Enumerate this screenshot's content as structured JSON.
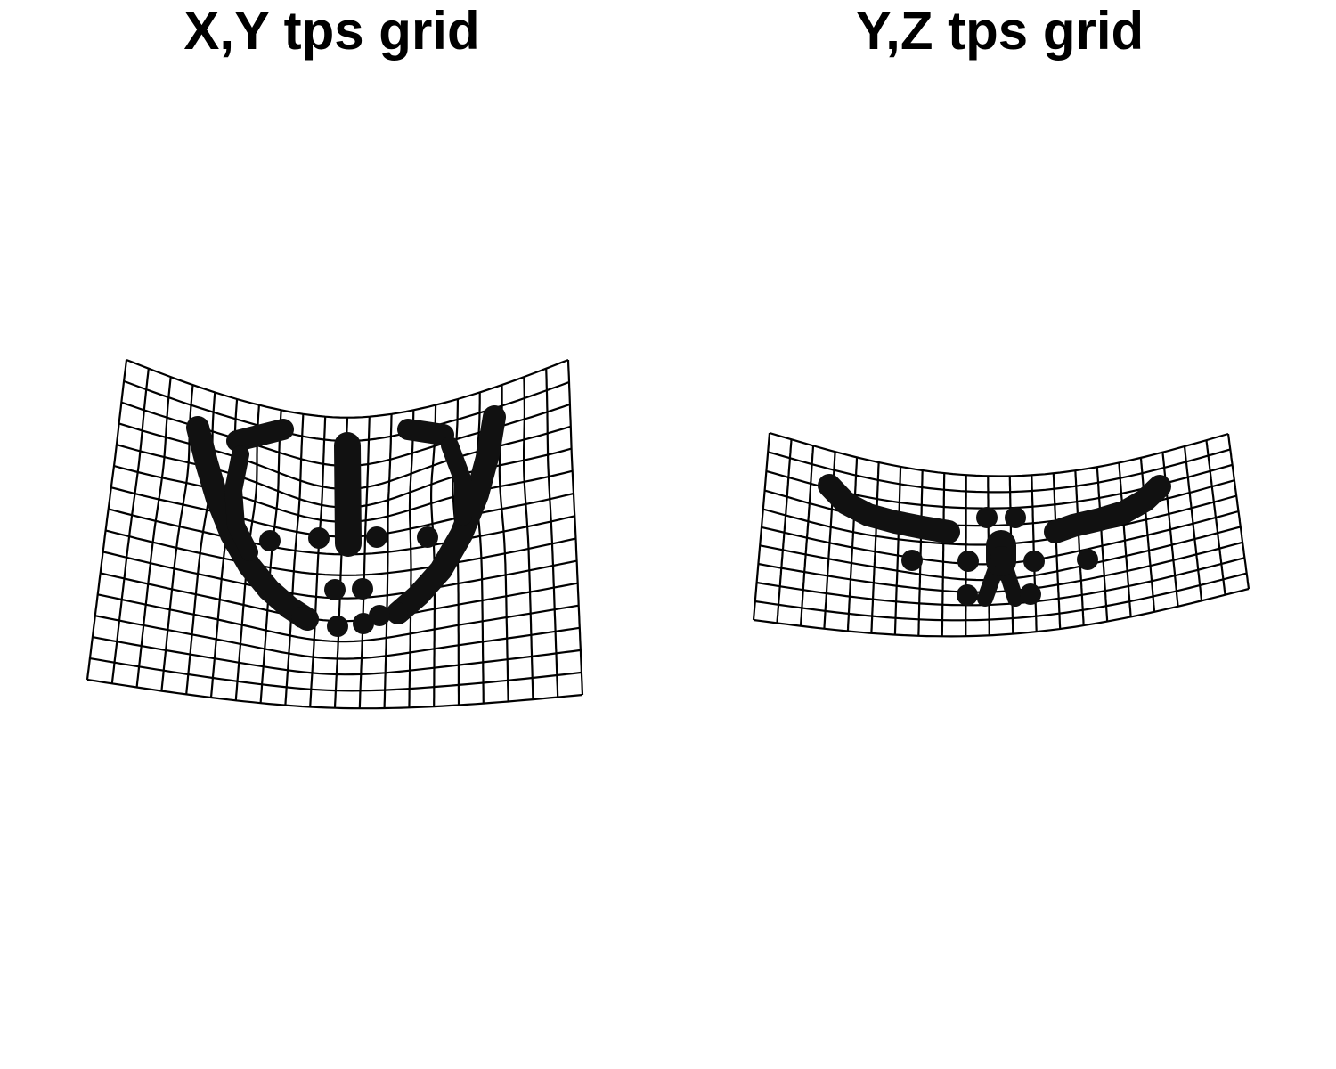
{
  "panels": [
    {
      "id": "xy",
      "title": "X,Y tps grid"
    },
    {
      "id": "yz",
      "title": "Y,Z tps grid"
    }
  ],
  "colors": {
    "grid": "#000000",
    "landmarks": "#111111",
    "background": "#ffffff"
  }
}
